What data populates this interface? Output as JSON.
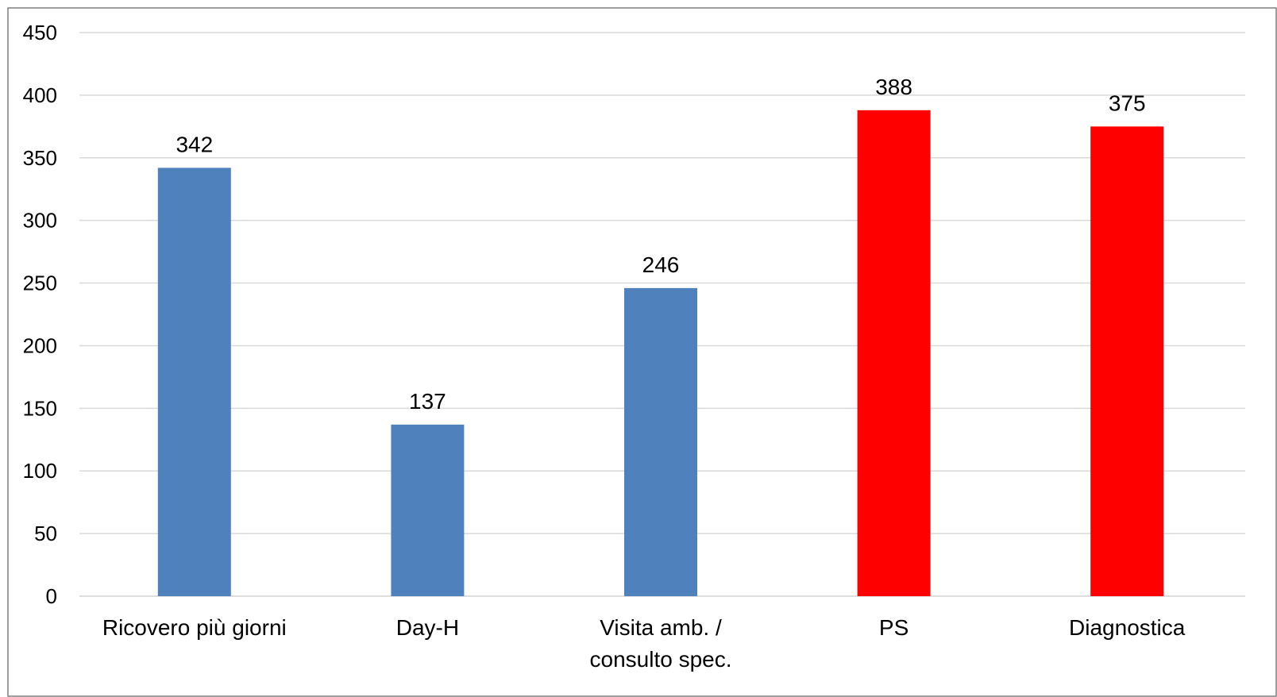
{
  "chart_data": {
    "type": "bar",
    "title": "",
    "xlabel": "",
    "ylabel": "",
    "categories": [
      [
        "Ricovero più giorni"
      ],
      [
        "Day-H"
      ],
      [
        "Visita amb. /",
        "consulto spec."
      ],
      [
        "PS"
      ],
      [
        "Diagnostica"
      ]
    ],
    "values": [
      342,
      137,
      246,
      388,
      375
    ],
    "bar_colors": [
      "#4f81bd",
      "#4f81bd",
      "#4f81bd",
      "#ff0000",
      "#ff0000"
    ],
    "ylim": [
      0,
      450
    ],
    "yticks": [
      0,
      50,
      100,
      150,
      200,
      250,
      300,
      350,
      400,
      450
    ],
    "grid": true,
    "legend": "none",
    "data_labels": true
  },
  "colors": {
    "grid": "#d9d9d9",
    "frame": "#7f7f7f",
    "text": "#000000"
  }
}
